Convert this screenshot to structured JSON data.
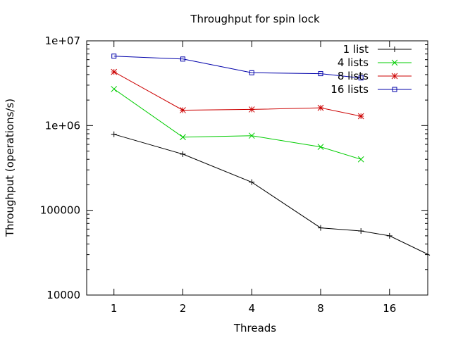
{
  "chart_data": {
    "type": "line",
    "title": "Throughput for spin lock",
    "xlabel": "Threads",
    "ylabel": "Throughput (operations/s)",
    "x_scale": "log2",
    "y_scale": "log10",
    "xlim": [
      0.76,
      23.5
    ],
    "ylim": [
      10000,
      10000000
    ],
    "x_ticks": [
      1,
      2,
      4,
      8,
      16
    ],
    "x_tick_labels": [
      "1",
      "2",
      "4",
      "8",
      "16"
    ],
    "y_ticks": [
      10000,
      100000,
      1000000,
      10000000
    ],
    "y_tick_labels": [
      "10000",
      "100000",
      "1e+06",
      "1e+07"
    ],
    "grid": false,
    "legend_position": "top-right",
    "series": [
      {
        "name": "1 list",
        "color": "#000000",
        "marker": "plus",
        "x": [
          1,
          2,
          4,
          8,
          12,
          16,
          24
        ],
        "y": [
          790000,
          460000,
          215000,
          62000,
          57000,
          50000,
          29500
        ]
      },
      {
        "name": "4 lists",
        "color": "#00cc00",
        "marker": "cross",
        "x": [
          1,
          2,
          4,
          8,
          12
        ],
        "y": [
          2700000,
          730000,
          760000,
          560000,
          400000
        ]
      },
      {
        "name": "8 lists",
        "color": "#cc0000",
        "marker": "star",
        "x": [
          1,
          2,
          4,
          8,
          12
        ],
        "y": [
          4300000,
          1520000,
          1550000,
          1620000,
          1290000
        ]
      },
      {
        "name": "16 lists",
        "color": "#0000aa",
        "marker": "square",
        "x": [
          1,
          2,
          4,
          8,
          12
        ],
        "y": [
          6600000,
          6100000,
          4200000,
          4100000,
          3650000
        ]
      }
    ]
  }
}
